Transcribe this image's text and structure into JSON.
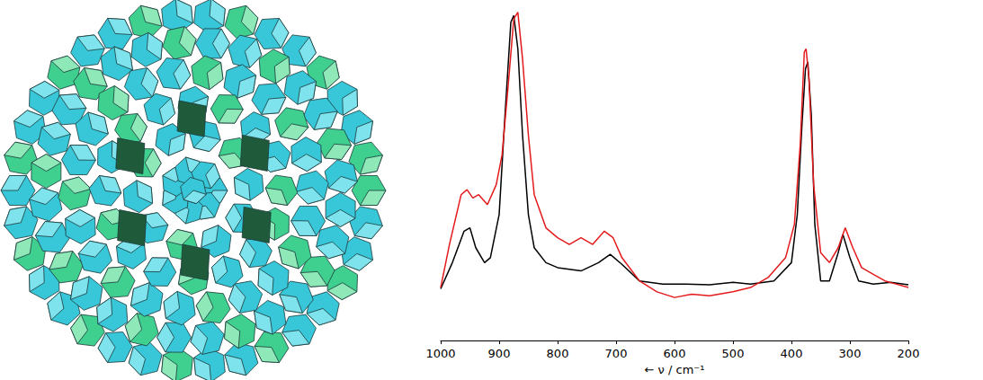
{
  "chart_data": {
    "type": "line",
    "xlabel": "← ν / cm⁻¹",
    "xlim": [
      1000,
      200
    ],
    "xticks": [
      1000,
      900,
      800,
      700,
      600,
      500,
      400,
      300,
      200
    ],
    "ylim": [
      0,
      1
    ],
    "tick_labels": "x",
    "grid": false,
    "series": [
      {
        "color": "#000000",
        "x": [
          1000,
          980,
          960,
          950,
          940,
          925,
          915,
          900,
          890,
          880,
          875,
          868,
          860,
          850,
          840,
          820,
          800,
          760,
          730,
          710,
          690,
          660,
          620,
          580,
          540,
          500,
          470,
          430,
          400,
          390,
          382,
          376,
          372,
          366,
          360,
          350,
          335,
          320,
          312,
          300,
          285,
          260,
          230,
          200
        ],
        "values": [
          0.156,
          0.235,
          0.33,
          0.34,
          0.28,
          0.235,
          0.25,
          0.38,
          0.68,
          0.96,
          0.98,
          0.88,
          0.62,
          0.38,
          0.28,
          0.235,
          0.22,
          0.21,
          0.235,
          0.26,
          0.23,
          0.18,
          0.17,
          0.17,
          0.168,
          0.176,
          0.17,
          0.18,
          0.235,
          0.38,
          0.65,
          0.82,
          0.84,
          0.68,
          0.35,
          0.18,
          0.18,
          0.265,
          0.32,
          0.25,
          0.18,
          0.17,
          0.176,
          0.168
        ]
      },
      {
        "color": "#e41a1c",
        "x": [
          1000,
          985,
          965,
          955,
          945,
          935,
          920,
          905,
          895,
          885,
          875,
          868,
          860,
          850,
          840,
          820,
          800,
          780,
          760,
          740,
          720,
          705,
          690,
          660,
          630,
          600,
          570,
          540,
          500,
          470,
          440,
          410,
          395,
          385,
          378,
          375,
          370,
          362,
          350,
          335,
          320,
          308,
          295,
          280,
          260,
          240,
          220,
          200
        ],
        "values": [
          0.16,
          0.29,
          0.44,
          0.455,
          0.43,
          0.44,
          0.41,
          0.47,
          0.56,
          0.76,
          0.97,
          0.99,
          0.85,
          0.62,
          0.44,
          0.34,
          0.31,
          0.29,
          0.31,
          0.29,
          0.33,
          0.31,
          0.25,
          0.18,
          0.147,
          0.13,
          0.14,
          0.135,
          0.147,
          0.16,
          0.19,
          0.25,
          0.35,
          0.59,
          0.87,
          0.88,
          0.79,
          0.47,
          0.265,
          0.235,
          0.28,
          0.34,
          0.28,
          0.22,
          0.2,
          0.18,
          0.17,
          0.16
        ]
      }
    ]
  }
}
